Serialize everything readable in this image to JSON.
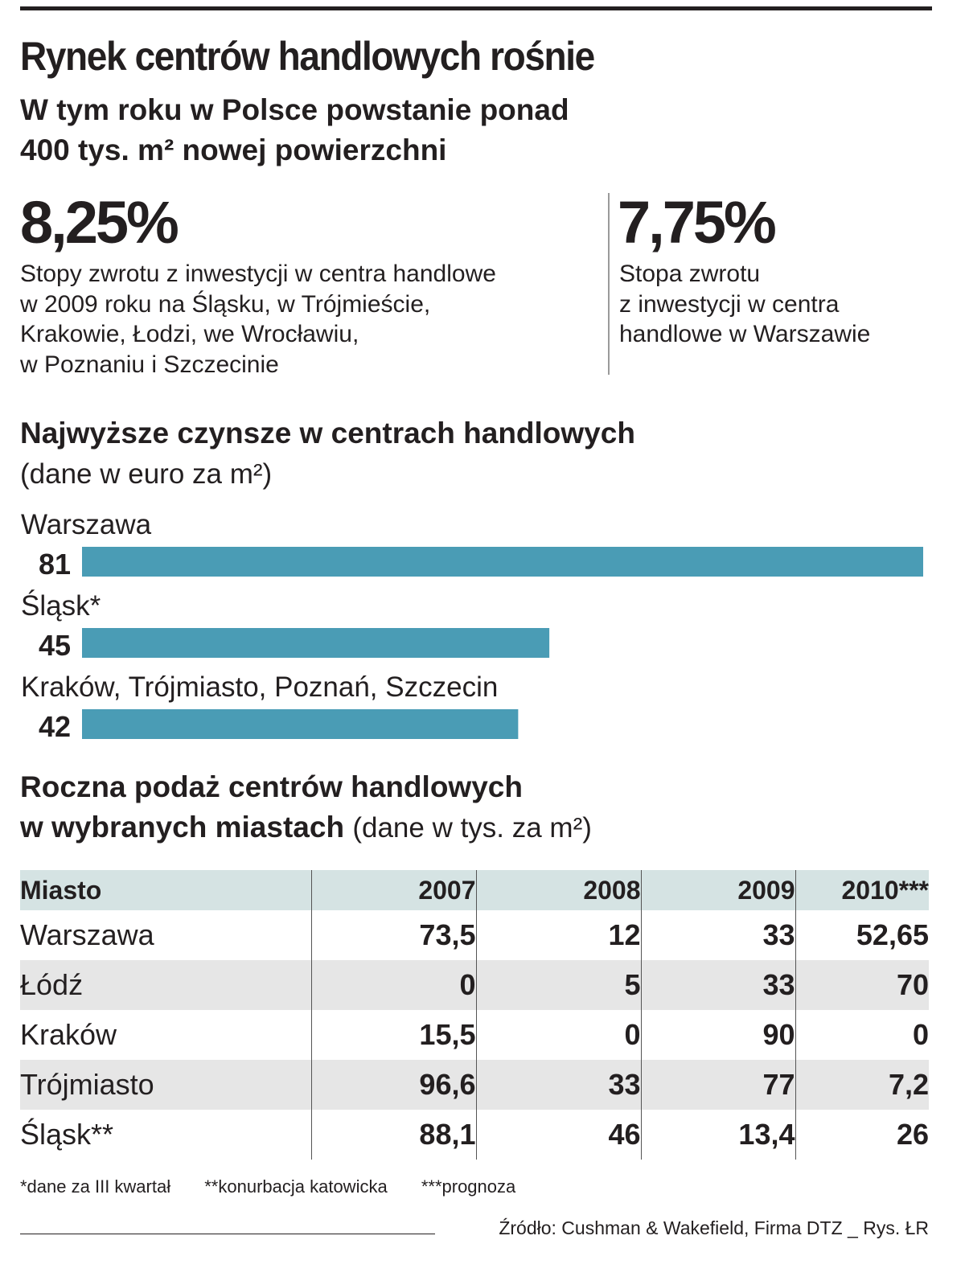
{
  "header": {
    "title": "Rynek centrów handlowych rośnie",
    "subtitle_line1": "W tym roku w Polsce powstanie ponad",
    "subtitle_line2": "400 tys. m² nowej powierzchni"
  },
  "stats": [
    {
      "value": "8,25%",
      "description": "Stopy zwrotu z inwestycji w centra handlowe\nw 2009 roku na Śląsku,  w Trójmieście,\nKrakowie, Łodzi, we Wrocławiu,\nw Poznaniu i Szczecinie"
    },
    {
      "value": "7,75%",
      "description": "Stopa zwrotu\nz inwestycji w centra\nhandlowe w Warszawie"
    }
  ],
  "rent_section": {
    "title": "Najwyższe czynsze w centrach handlowych",
    "unit": "(dane w euro za m²)"
  },
  "colors": {
    "bar": "#4a9cb5",
    "header_band": "#d5e3e3",
    "row_shade": "#e6e6e6",
    "text": "#231f20"
  },
  "chart_data": {
    "type": "bar",
    "orientation": "horizontal",
    "categories": [
      "Warszawa",
      "Śląsk*",
      "Kraków, Trójmiasto, Poznań, Szczecin"
    ],
    "values": [
      81,
      45,
      42
    ],
    "value_labels": [
      "81",
      "45",
      "42"
    ],
    "title": "Najwyższe czynsze w centrach handlowych",
    "unit": "(dane w euro za m²)",
    "xlim": [
      0,
      81
    ],
    "grid": false,
    "legend": "none"
  },
  "supply_section": {
    "title_bold_line1": "Roczna podaż centrów handlowych",
    "title_bold_line2": "w wybranych miastach",
    "unit": "(dane w tys. za m²)"
  },
  "table": {
    "headers": [
      "Miasto",
      "2007",
      "2008",
      "2009",
      "2010***"
    ],
    "rows": [
      [
        "Warszawa",
        "73,5",
        "12",
        "33",
        "52,65"
      ],
      [
        "Łódź",
        "0",
        "5",
        "33",
        "70"
      ],
      [
        "Kraków",
        "15,5",
        "0",
        "90",
        "0"
      ],
      [
        "Trójmiasto",
        "96,6",
        "33",
        "77",
        "7,2"
      ],
      [
        "Śląsk**",
        "88,1",
        "46",
        "13,4",
        "26"
      ]
    ]
  },
  "notes": [
    "*dane za III kwartał",
    "**konurbacja katowicka",
    "***prognoza"
  ],
  "source": "Źródło: Cushman & Wakefield, Firma DTZ _ Rys. ŁR"
}
